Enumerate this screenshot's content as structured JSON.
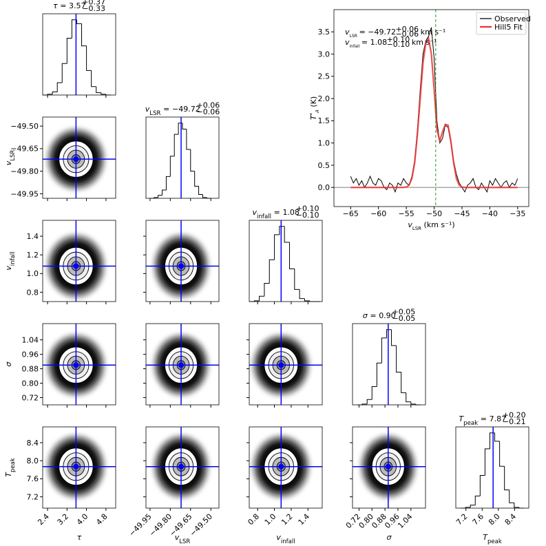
{
  "chart_data": [
    {
      "type": "corner",
      "eq": "=",
      "truth_color": "#0000ff",
      "hist_color": "#000000",
      "params": [
        {
          "label": "τ",
          "median": 3.57,
          "upper": {
            "value": 0.37,
            "label": "+0.37"
          },
          "lower": {
            "value": -0.33,
            "label": "−0.33"
          },
          "lim": [
            2.2,
            5.2
          ],
          "ticks": [
            2.4,
            3.2,
            {
              "value": 4,
              "label": "4.0"
            },
            4.8
          ],
          "bins": [
            2.2,
            2.4,
            2.6,
            2.8,
            3.0,
            3.2,
            3.4,
            3.6,
            3.8,
            4.0,
            4.2,
            4.4,
            4.6,
            4.8,
            5.0
          ],
          "counts": [
            0,
            1,
            4,
            16,
            41,
            74,
            98,
            93,
            64,
            32,
            11,
            3,
            1,
            0
          ]
        },
        {
          "label": "v",
          "label_sub": "LSR",
          "median": {
            "value": -49.72,
            "label": "−49.72"
          },
          "upper": {
            "value": 0.06,
            "label": "+0.06"
          },
          "lower": {
            "value": -0.06,
            "label": "−0.06"
          },
          "lim": [
            -49.98,
            -49.44
          ],
          "ticks": [
            {
              "value": -49.95,
              "label": "−49.95"
            },
            {
              "value": -49.8,
              "label": "−49.80"
            },
            {
              "value": -49.65,
              "label": "−49.65"
            },
            {
              "value": -49.5,
              "label": "−49.50"
            }
          ],
          "bins": [
            -49.95,
            -49.92,
            -49.89,
            -49.86,
            -49.83,
            -49.8,
            -49.77,
            -49.74,
            -49.71,
            -49.68,
            -49.65,
            -49.62,
            -49.59,
            -49.56,
            -49.53,
            -49.5
          ],
          "counts": [
            0,
            1,
            4,
            11,
            29,
            56,
            85,
            100,
            92,
            65,
            36,
            16,
            5,
            1,
            0
          ]
        },
        {
          "label": "v",
          "label_sub": "infall",
          "median": 1.08,
          "upper": {
            "value": 0.1,
            "label": "+0.10"
          },
          "lower": {
            "value": -0.1,
            "label": "−0.10"
          },
          "lim": [
            0.7,
            1.57
          ],
          "ticks": [
            0.8,
            {
              "value": 1,
              "label": "1.0"
            },
            1.2,
            1.4
          ],
          "bins": [
            0.7,
            0.76,
            0.82,
            0.88,
            0.94,
            1.0,
            1.06,
            1.12,
            1.18,
            1.24,
            1.3,
            1.36,
            1.42,
            1.48,
            1.54
          ],
          "counts": [
            0,
            1,
            7,
            24,
            55,
            88,
            99,
            78,
            43,
            16,
            4,
            1,
            0,
            0
          ]
        },
        {
          "label": "σ",
          "median": {
            "value": 0.9,
            "label": "0.90"
          },
          "upper": {
            "value": 0.05,
            "label": "+0.05"
          },
          "lower": {
            "value": -0.05,
            "label": "−0.05"
          },
          "lim": [
            0.68,
            1.13
          ],
          "ticks": [
            0.72,
            {
              "value": 0.8,
              "label": "0.80"
            },
            0.88,
            0.96,
            1.04
          ],
          "bins": [
            0.71,
            0.74,
            0.77,
            0.8,
            0.83,
            0.86,
            0.89,
            0.92,
            0.95,
            0.98,
            1.01,
            1.04,
            1.07,
            1.1
          ],
          "counts": [
            0,
            1,
            7,
            24,
            55,
            88,
            99,
            78,
            43,
            16,
            4,
            1,
            0
          ]
        },
        {
          "label": "T",
          "label_sub": "peak",
          "median": 7.87,
          "upper": {
            "value": 0.2,
            "label": "+0.20"
          },
          "lower": {
            "value": -0.21,
            "label": "−0.21"
          },
          "lim": [
            6.95,
            8.75
          ],
          "ticks": [
            7.2,
            7.6,
            {
              "value": 8,
              "label": "8.0"
            },
            8.4
          ],
          "bins": [
            7.07,
            7.19,
            7.31,
            7.43,
            7.55,
            7.67,
            7.79,
            7.91,
            8.03,
            8.15,
            8.27,
            8.39,
            8.51,
            8.63
          ],
          "counts": [
            0,
            1,
            4,
            16,
            43,
            78,
            99,
            88,
            55,
            24,
            7,
            1,
            0
          ]
        }
      ]
    },
    {
      "type": "line",
      "x": [
        -65,
        -64.5,
        -64,
        -63.5,
        -63,
        -62.5,
        -62,
        -61.5,
        -61,
        -60.5,
        -60,
        -59.5,
        -59,
        -58.5,
        -58,
        -57.5,
        -57,
        -56.5,
        -56,
        -55.5,
        -55,
        -54.5,
        -54,
        -53.5,
        -53,
        -52.5,
        -52,
        -51.5,
        -51,
        -50.5,
        -50,
        -49.5,
        -49,
        -48.5,
        -48,
        -47.5,
        -47,
        -46.5,
        -46,
        -45.5,
        -45,
        -44.5,
        -44,
        -43.5,
        -43,
        -42.5,
        -42,
        -41.5,
        -41,
        -40.5,
        -40,
        -39.5,
        -39,
        -38.5,
        -38,
        -37.5,
        -37,
        -36.5,
        -36,
        -35.5,
        -35
      ],
      "series": [
        {
          "name": "Observed",
          "color": "#000000",
          "values": [
            0.25,
            0.1,
            0.2,
            0.05,
            0.15,
            0.0,
            0.1,
            0.25,
            0.1,
            0.05,
            0.2,
            0.15,
            0.0,
            -0.05,
            0.1,
            0.05,
            -0.1,
            0.1,
            0.05,
            0.2,
            0.1,
            0.05,
            0.25,
            0.6,
            1.3,
            2.2,
            3.0,
            3.3,
            3.4,
            3.6,
            2.9,
            1.5,
            1.0,
            1.1,
            1.4,
            1.35,
            1.0,
            0.6,
            0.3,
            0.1,
            0.0,
            -0.1,
            0.05,
            0.1,
            0.2,
            0.0,
            -0.05,
            0.1,
            0.0,
            -0.1,
            0.15,
            0.05,
            0.2,
            0.1,
            0.0,
            0.1,
            0.15,
            0.0,
            0.1,
            0.05,
            0.2
          ]
        },
        {
          "name": "Hill5 Fit",
          "color": "#ee3333",
          "values": [
            0,
            0,
            0,
            0,
            0,
            0,
            0,
            0,
            0,
            0,
            0,
            0,
            0,
            0,
            0,
            0,
            0,
            0,
            0,
            0,
            0.01,
            0.05,
            0.2,
            0.55,
            1.2,
            2.0,
            2.8,
            3.25,
            3.35,
            3.0,
            2.2,
            1.3,
            1.05,
            1.25,
            1.42,
            1.4,
            1.05,
            0.55,
            0.2,
            0.05,
            0.01,
            0,
            0,
            0,
            0,
            0,
            0,
            0,
            0,
            0,
            0,
            0,
            0,
            0,
            0,
            0,
            0,
            0,
            0,
            0,
            0
          ]
        }
      ],
      "xlim": [
        -68,
        -33
      ],
      "ylim": [
        -0.43,
        4.0
      ],
      "xticks": [
        {
          "value": -65,
          "label": "−65"
        },
        {
          "value": -60,
          "label": "−60"
        },
        {
          "value": -55,
          "label": "−55"
        },
        {
          "value": -50,
          "label": "−50"
        },
        {
          "value": -45,
          "label": "−45"
        },
        {
          "value": -40,
          "label": "−40"
        },
        {
          "value": -35,
          "label": "−35"
        }
      ],
      "yticks": [
        {
          "value": 0,
          "label": "0.0"
        },
        0.5,
        {
          "value": 1,
          "label": "1.0"
        },
        1.5,
        {
          "value": 2,
          "label": "2.0"
        },
        2.5,
        {
          "value": 3,
          "label": "3.0"
        },
        3.5
      ],
      "vline": -49.72,
      "vline_color": "#229922",
      "hline": 0,
      "hline_color": "#999999",
      "legend": "upper right",
      "xlabel": {
        "main": "v",
        "sub": "LSR",
        "rest": " (km s⁻¹)"
      },
      "ylabel": {
        "main": "T",
        "sup": "*",
        "sub": "A",
        "rest": " (K)"
      },
      "annotations": [
        {
          "main": "v",
          "sub": "LSR",
          "text": "= −49.72",
          "upper": "+0.06",
          "lower": "−0.06",
          "unit": "km s⁻¹"
        },
        {
          "main": "v",
          "sub": "infall",
          "text": "= 1.08",
          "upper": "+0.10",
          "lower": "−0.10",
          "unit": "km s⁻¹"
        }
      ]
    }
  ]
}
